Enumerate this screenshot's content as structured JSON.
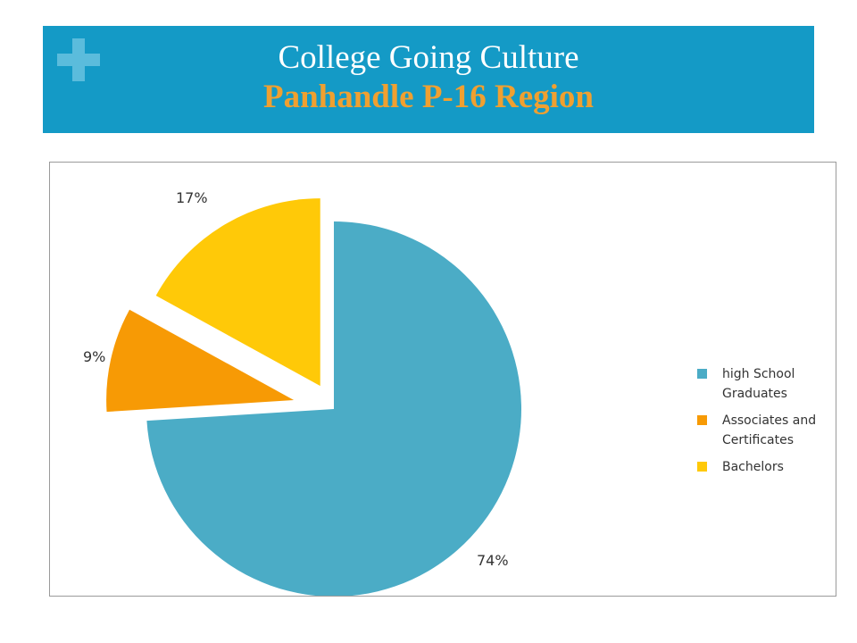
{
  "header": {
    "title": "College Going Culture",
    "subtitle": "Panhandle P-16 Region"
  },
  "chart_data": {
    "type": "pie",
    "exploded": true,
    "legend_position": "right",
    "slices": [
      {
        "name": "high School Graduates",
        "value": 74,
        "label": "74%",
        "color": "#4bacc6"
      },
      {
        "name": "Associates and Certificates",
        "value": 9,
        "label": "9%",
        "color": "#f79a05"
      },
      {
        "name": "Bachelors",
        "value": 17,
        "label": "17%",
        "color": "#ffc908"
      }
    ]
  }
}
